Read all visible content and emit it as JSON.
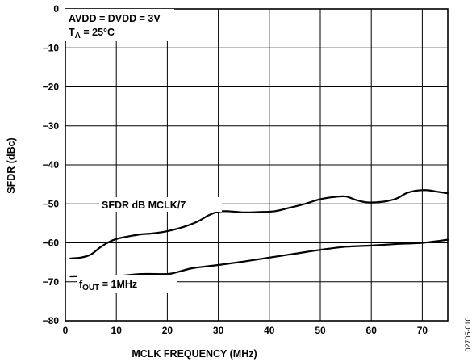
{
  "chart_data": {
    "type": "line",
    "xlabel": "MCLK FREQUENCY (MHz)",
    "ylabel": "SFDR (dBc)",
    "xlim": [
      0,
      75
    ],
    "ylim": [
      -80,
      0
    ],
    "xticks": [
      "0",
      "10",
      "20",
      "30",
      "40",
      "50",
      "60",
      "70"
    ],
    "yticks": [
      "0",
      "−10",
      "−20",
      "−30",
      "−40",
      "−50",
      "−60",
      "−70",
      "−80"
    ],
    "grid": true,
    "series": [
      {
        "name": "SFDR dB MCLK/7",
        "x": [
          1,
          3,
          5,
          7,
          9,
          11,
          13,
          15,
          17,
          20,
          23,
          26,
          28,
          30,
          32,
          35,
          38,
          41,
          44,
          47,
          50,
          53,
          55,
          57,
          59,
          61,
          63,
          65,
          67,
          69,
          71,
          73,
          75
        ],
        "y": [
          -64,
          -63.8,
          -63,
          -61,
          -59.5,
          -58.7,
          -58.2,
          -57.8,
          -57.6,
          -57,
          -56,
          -54.5,
          -53,
          -52,
          -51.9,
          -52.2,
          -52.1,
          -51.9,
          -51,
          -50,
          -48.8,
          -48.2,
          -48.1,
          -49,
          -49.6,
          -49.6,
          -49.3,
          -48.6,
          -47.2,
          -46.6,
          -46.5,
          -46.9,
          -47.3
        ]
      },
      {
        "name": "fOUT = 1MHz",
        "x": [
          1,
          5,
          10,
          15,
          20,
          22,
          25,
          30,
          35,
          40,
          45,
          50,
          55,
          60,
          65,
          70,
          75
        ],
        "y": [
          -68.6,
          -68.5,
          -68.5,
          -68,
          -68,
          -67.5,
          -66.5,
          -65.7,
          -64.8,
          -63.8,
          -62.8,
          -61.8,
          -61,
          -60.7,
          -60.3,
          -60,
          -59.2
        ]
      }
    ],
    "annotations": {
      "supply": "AVDD = DVDD = 3V",
      "temp_prefix": "T",
      "temp_sub": "A",
      "temp_suffix": " = 25°C",
      "series1_label": "SFDR dB MCLK/7",
      "series2_prefix": "f",
      "series2_sub": "OUT",
      "series2_suffix": " = 1MHz"
    },
    "figure_code": "02705-010"
  }
}
